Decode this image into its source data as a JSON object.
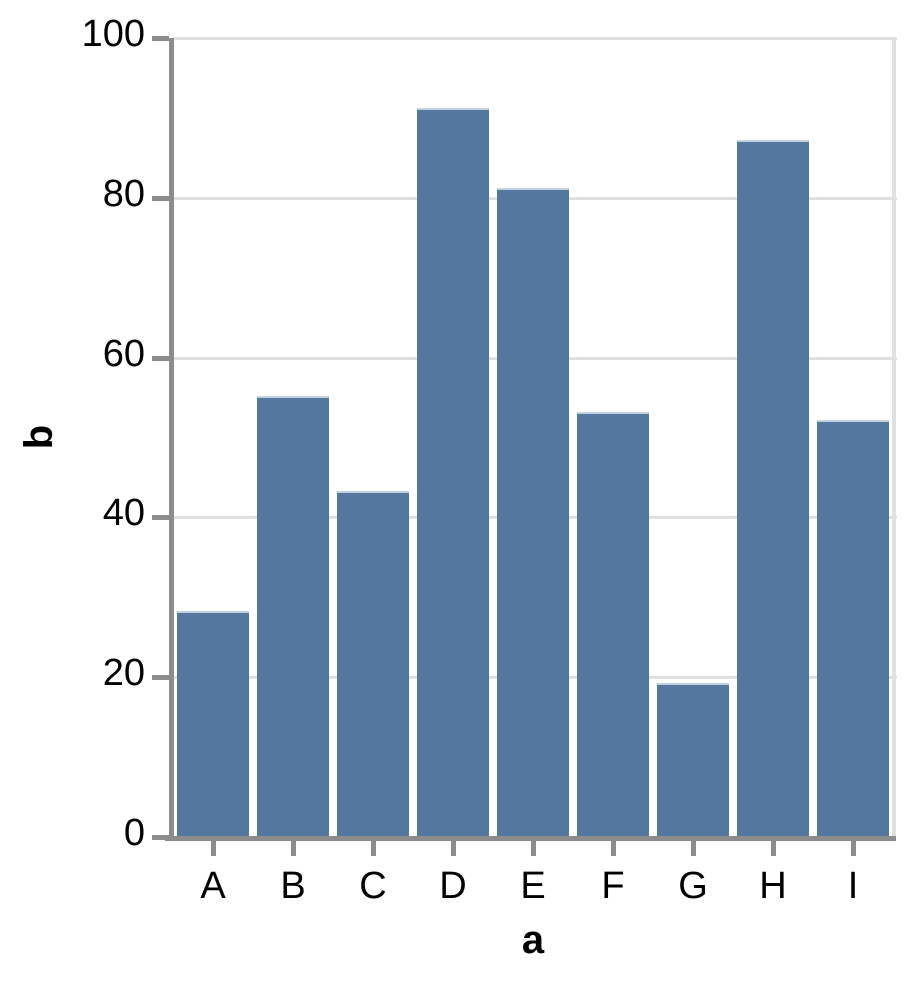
{
  "chart_data": {
    "type": "bar",
    "categories": [
      "A",
      "B",
      "C",
      "D",
      "E",
      "F",
      "G",
      "H",
      "I"
    ],
    "values": [
      28,
      55,
      43,
      91,
      81,
      53,
      19,
      87,
      52
    ],
    "title": "",
    "xlabel": "a",
    "ylabel": "b",
    "ylim": [
      0,
      100
    ],
    "yticks": [
      0,
      20,
      40,
      60,
      80,
      100
    ],
    "grid": true,
    "legend": "none",
    "colors": {
      "bar": "#54779e",
      "bar_top_edge": "#c2cfe2",
      "grid": "#e0e0e0",
      "axis": "#8c8c8c",
      "text": "#000000",
      "background": "#ffffff"
    }
  }
}
